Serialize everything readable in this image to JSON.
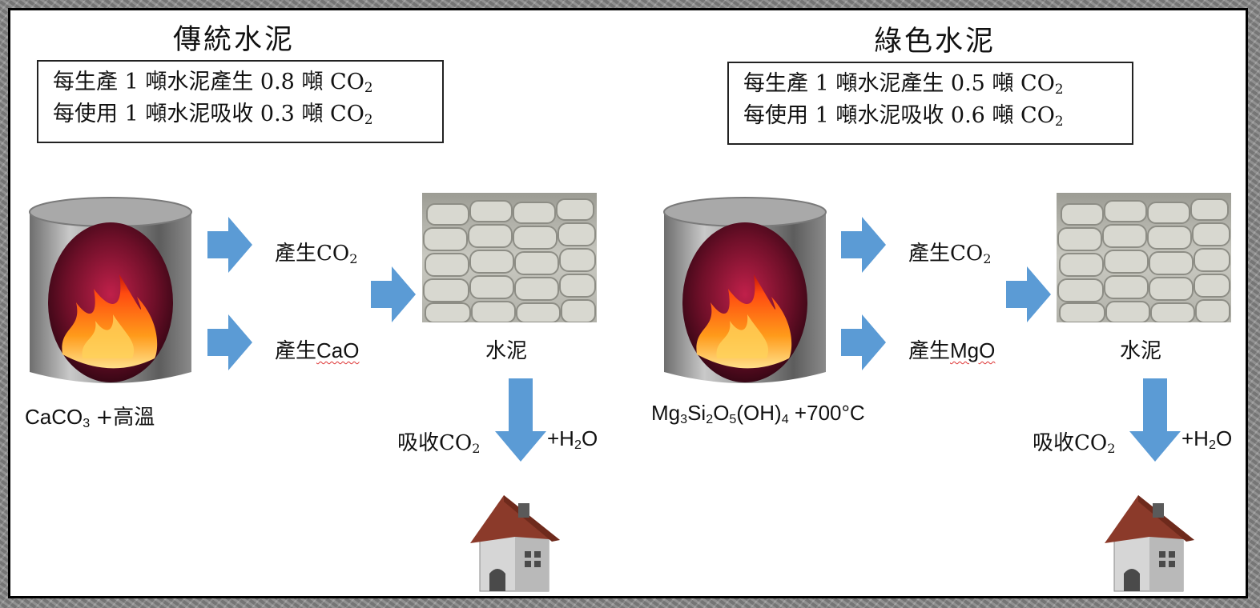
{
  "left": {
    "title": "傳統水泥",
    "info": {
      "line1_prefix": "每生產 1 噸水泥產生 0.8 噸 CO",
      "line1_sub": "2",
      "line2_prefix": "每使用 1 噸水泥吸收 0.3 噸 CO",
      "line2_sub": "2"
    },
    "product1": {
      "prefix": "產生CO",
      "sub": "2"
    },
    "product2": {
      "prefix": "產生",
      "formula": "CaO"
    },
    "cement_label": "水泥",
    "absorb": {
      "prefix": "吸收CO",
      "sub": "2"
    },
    "water": {
      "prefix": "+H",
      "sub": "2",
      "suffix": "O"
    },
    "reactant": {
      "a": "CaCO",
      "a_sub": "3",
      "b": "+高溫"
    }
  },
  "right": {
    "title": "綠色水泥",
    "info": {
      "line1_prefix": "每生產 1 噸水泥產生 0.5 噸 CO",
      "line1_sub": "2",
      "line2_prefix": "每使用 1 噸水泥吸收 0.6 噸 CO",
      "line2_sub": "2"
    },
    "product1": {
      "prefix": "產生CO",
      "sub": "2"
    },
    "product2": {
      "prefix": "產生",
      "formula": "MgO"
    },
    "cement_label": "水泥",
    "absorb": {
      "prefix": "吸收CO",
      "sub": "2"
    },
    "water": {
      "prefix": "+H",
      "sub": "2",
      "suffix": "O"
    },
    "reactant": {
      "p1": "Mg",
      "s1": "3",
      "p2": "Si",
      "s2": "2",
      "p3": "O",
      "s3": "5",
      "p4": "(OH)",
      "s4": "4",
      "p5": "+700°C"
    }
  },
  "colors": {
    "arrow": "#5b9bd5",
    "frame": "#000000",
    "roof": "#8b3a2a",
    "fire": "#ff5a10"
  },
  "icons": [
    "furnace-icon",
    "arrow-right-icon",
    "arrow-down-icon",
    "cement-bags-photo",
    "house-icon"
  ]
}
